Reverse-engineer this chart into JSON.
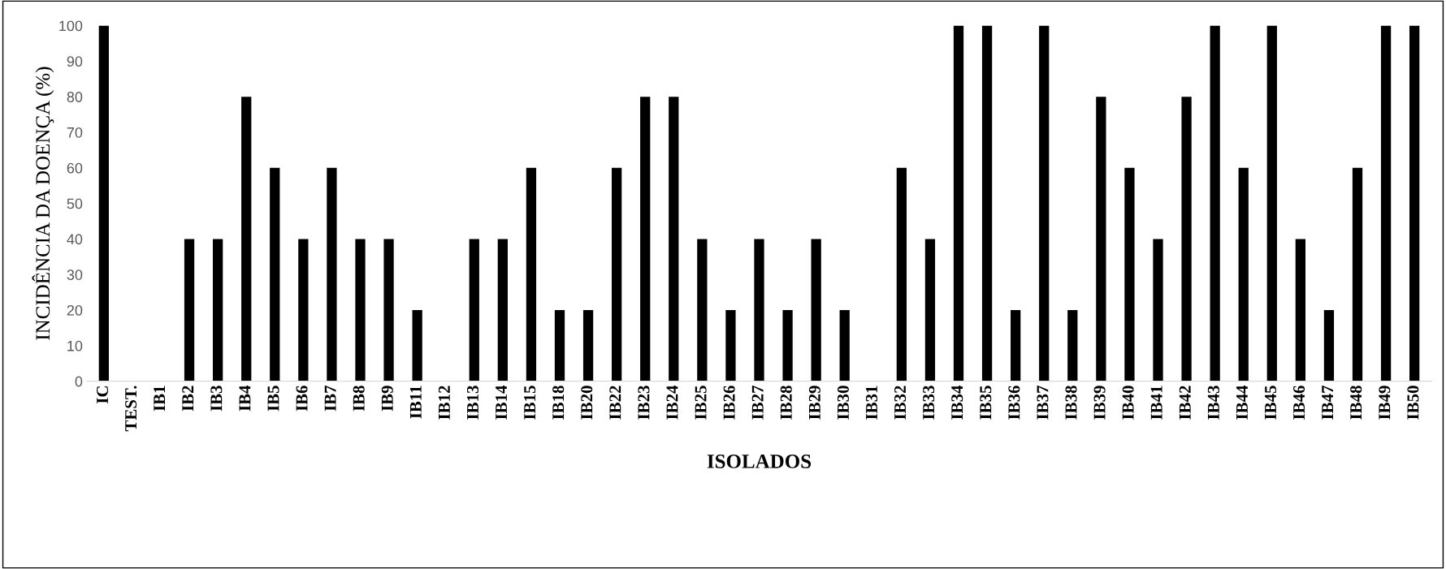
{
  "chart_data": {
    "type": "bar",
    "xlabel": "ISOLADOS",
    "ylabel": "INCIDÊNCIA DA DOENÇA (%)",
    "categories": [
      "IC",
      "TEST.",
      "IB1",
      "IB2",
      "IB3",
      "IB4",
      "IB5",
      "IB6",
      "IB7",
      "IB8",
      "IB9",
      "IB11",
      "IB12",
      "IB13",
      "IB14",
      "IB15",
      "IB18",
      "IB20",
      "IB22",
      "IB23",
      "IB24",
      "IB25",
      "IB26",
      "IB27",
      "IB28",
      "IB29",
      "IB30",
      "IB31",
      "IB32",
      "IB33",
      "IB34",
      "IB35",
      "IB36",
      "IB37",
      "IB38",
      "IB39",
      "IB40",
      "IB41",
      "IB42",
      "IB43",
      "IB44",
      "IB45",
      "IB46",
      "IB47",
      "IB48",
      "IB49",
      "IB50"
    ],
    "values": [
      100,
      0,
      0,
      40,
      40,
      80,
      60,
      40,
      60,
      40,
      40,
      20,
      0,
      40,
      40,
      60,
      20,
      20,
      60,
      80,
      80,
      40,
      20,
      40,
      20,
      40,
      20,
      0,
      60,
      40,
      100,
      100,
      20,
      100,
      20,
      80,
      60,
      40,
      80,
      100,
      60,
      100,
      40,
      20,
      60,
      100,
      100
    ],
    "color": "#000000",
    "ylim": [
      0,
      100
    ],
    "yticks": [
      0,
      10,
      20,
      30,
      40,
      50,
      60,
      70,
      80,
      90,
      100
    ],
    "grid": false
  }
}
